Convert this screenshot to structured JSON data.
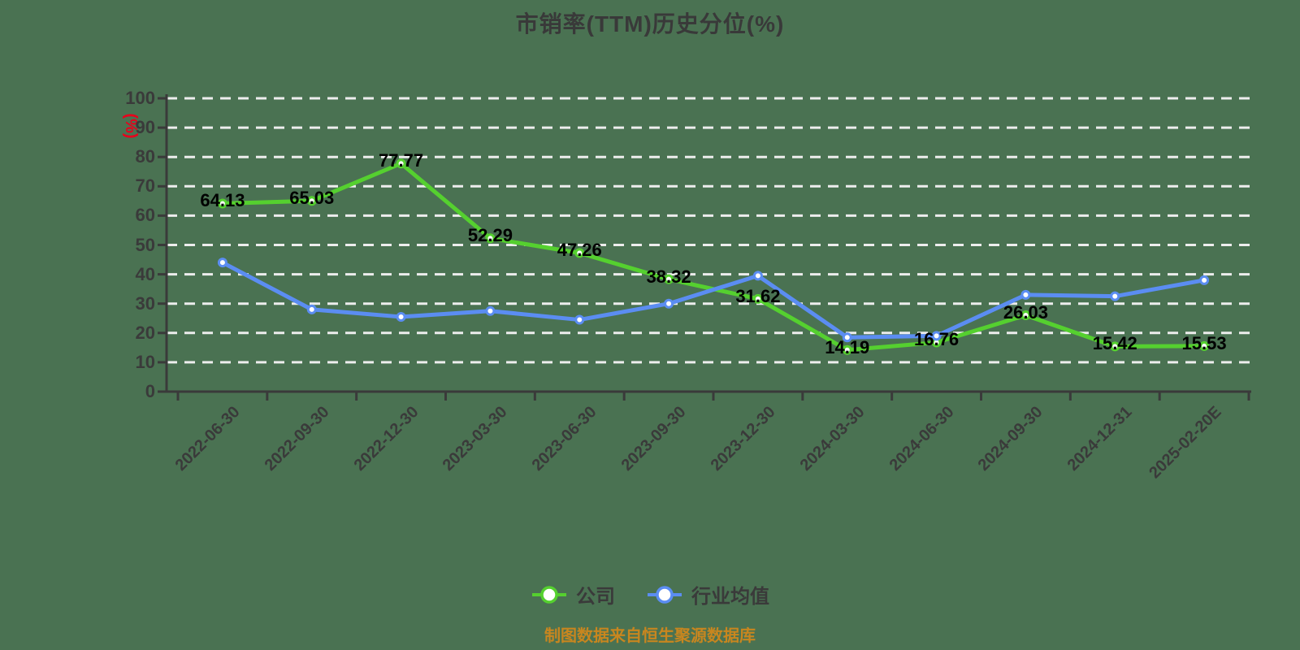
{
  "title": "市销率(TTM)历史分位(%)",
  "y_axis_name": "(%)",
  "footer": "制图数据来自恒生聚源数据库",
  "colors": {
    "background": "#4a7252",
    "company_line": "#55d02f",
    "industry_line": "#5b8df2",
    "axis": "#3a3a3a",
    "gridline": "#ededed",
    "tick_label": "#3a3a3a",
    "data_label": "#000000",
    "y_axis_name": "#e8001c",
    "footer_text": "#c8861f"
  },
  "legend": {
    "items": [
      {
        "label": "公司",
        "color": "#55d02f"
      },
      {
        "label": "行业均值",
        "color": "#5b8df2"
      }
    ]
  },
  "chart_data": {
    "type": "line",
    "title": "市销率(TTM)历史分位(%)",
    "ylabel": "(%)",
    "ylim": [
      0,
      100
    ],
    "y_ticks": [
      0,
      10,
      20,
      30,
      40,
      50,
      60,
      70,
      80,
      90,
      100
    ],
    "grid": "horizontal-dashed",
    "legend_position": "bottom",
    "categories": [
      "2022-06-30",
      "2022-09-30",
      "2022-12-30",
      "2023-03-30",
      "2023-06-30",
      "2023-09-30",
      "2023-12-30",
      "2024-03-30",
      "2024-06-30",
      "2024-09-30",
      "2024-12-31",
      "2025-02-20E"
    ],
    "series": [
      {
        "name": "公司",
        "color": "#55d02f",
        "show_point_labels": true,
        "values": [
          64.13,
          65.03,
          77.77,
          52.29,
          47.26,
          38.32,
          31.62,
          14.19,
          16.76,
          26.03,
          15.42,
          15.53
        ]
      },
      {
        "name": "行业均值",
        "color": "#5b8df2",
        "show_point_labels": false,
        "values_estimated_from_pixels": true,
        "values": [
          44,
          28,
          25.5,
          27.5,
          24.5,
          30,
          39.5,
          18.5,
          19,
          33,
          32.5,
          38
        ]
      }
    ]
  }
}
